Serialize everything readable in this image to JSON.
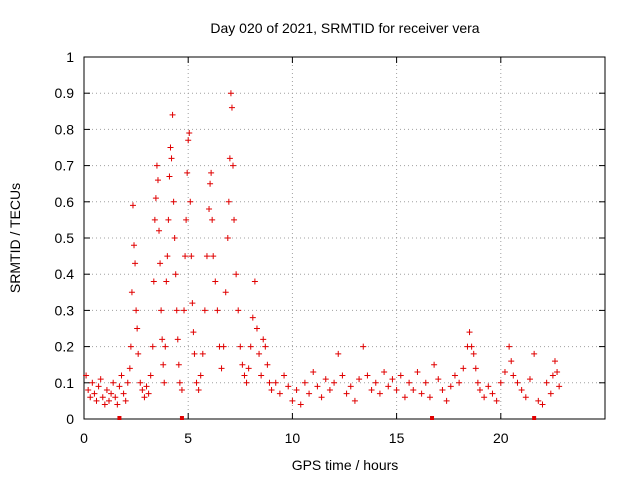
{
  "chart_data": {
    "type": "scatter",
    "title": "Day 020 of 2021, SRMTID for receiver vera",
    "xlabel": "GPS time / hours",
    "ylabel": "SRMTID / TECUs",
    "xlim": [
      0,
      25
    ],
    "ylim": [
      0,
      1
    ],
    "xticks": [
      0,
      5,
      10,
      15,
      20
    ],
    "xtick_labels": [
      "0",
      "5",
      "10",
      "15",
      "20"
    ],
    "yticks": [
      0,
      0.1,
      0.2,
      0.3,
      0.4,
      0.5,
      0.6,
      0.7,
      0.8,
      0.9,
      1
    ],
    "ytick_labels": [
      "0",
      "0.1",
      "0.2",
      "0.3",
      "0.4",
      "0.5",
      "0.6",
      "0.7",
      "0.8",
      "0.9",
      "1"
    ],
    "grid": true,
    "marker": "+",
    "marker_color": "#e00000",
    "series": [
      {
        "name": "SRMTID",
        "points": [
          [
            0.1,
            0.12
          ],
          [
            0.2,
            0.08
          ],
          [
            0.3,
            0.06
          ],
          [
            0.4,
            0.1
          ],
          [
            0.5,
            0.07
          ],
          [
            0.6,
            0.05
          ],
          [
            0.7,
            0.09
          ],
          [
            0.8,
            0.11
          ],
          [
            0.9,
            0.06
          ],
          [
            1.0,
            0.04
          ],
          [
            1.1,
            0.08
          ],
          [
            1.2,
            0.05
          ],
          [
            1.3,
            0.07
          ],
          [
            1.4,
            0.1
          ],
          [
            1.5,
            0.06
          ],
          [
            1.6,
            0.04
          ],
          [
            1.7,
            0.09
          ],
          [
            1.8,
            0.12
          ],
          [
            1.9,
            0.07
          ],
          [
            2.0,
            0.05
          ],
          [
            2.1,
            0.1
          ],
          [
            2.2,
            0.14
          ],
          [
            2.25,
            0.2
          ],
          [
            2.3,
            0.35
          ],
          [
            2.35,
            0.59
          ],
          [
            2.4,
            0.48
          ],
          [
            2.45,
            0.43
          ],
          [
            2.5,
            0.3
          ],
          [
            2.55,
            0.25
          ],
          [
            2.6,
            0.18
          ],
          [
            2.7,
            0.1
          ],
          [
            2.8,
            0.08
          ],
          [
            2.9,
            0.06
          ],
          [
            3.0,
            0.09
          ],
          [
            3.1,
            0.07
          ],
          [
            3.2,
            0.12
          ],
          [
            3.3,
            0.2
          ],
          [
            3.35,
            0.38
          ],
          [
            3.4,
            0.55
          ],
          [
            3.45,
            0.61
          ],
          [
            3.5,
            0.7
          ],
          [
            3.55,
            0.66
          ],
          [
            3.6,
            0.52
          ],
          [
            3.65,
            0.43
          ],
          [
            3.7,
            0.3
          ],
          [
            3.75,
            0.22
          ],
          [
            3.8,
            0.15
          ],
          [
            3.85,
            0.1
          ],
          [
            3.9,
            0.2
          ],
          [
            3.95,
            0.38
          ],
          [
            4.0,
            0.45
          ],
          [
            4.05,
            0.55
          ],
          [
            4.1,
            0.67
          ],
          [
            4.15,
            0.75
          ],
          [
            4.2,
            0.72
          ],
          [
            4.25,
            0.84
          ],
          [
            4.3,
            0.6
          ],
          [
            4.35,
            0.5
          ],
          [
            4.4,
            0.4
          ],
          [
            4.45,
            0.3
          ],
          [
            4.5,
            0.22
          ],
          [
            4.55,
            0.15
          ],
          [
            4.6,
            0.1
          ],
          [
            4.7,
            0.08
          ],
          [
            4.8,
            0.3
          ],
          [
            4.85,
            0.45
          ],
          [
            4.9,
            0.55
          ],
          [
            4.95,
            0.68
          ],
          [
            5.0,
            0.77
          ],
          [
            5.05,
            0.79
          ],
          [
            5.1,
            0.6
          ],
          [
            5.15,
            0.45
          ],
          [
            5.2,
            0.32
          ],
          [
            5.25,
            0.24
          ],
          [
            5.3,
            0.18
          ],
          [
            5.4,
            0.1
          ],
          [
            5.5,
            0.08
          ],
          [
            5.6,
            0.12
          ],
          [
            5.7,
            0.18
          ],
          [
            5.8,
            0.3
          ],
          [
            5.9,
            0.45
          ],
          [
            6.0,
            0.58
          ],
          [
            6.05,
            0.65
          ],
          [
            6.1,
            0.68
          ],
          [
            6.15,
            0.55
          ],
          [
            6.2,
            0.45
          ],
          [
            6.3,
            0.38
          ],
          [
            6.4,
            0.3
          ],
          [
            6.5,
            0.2
          ],
          [
            6.6,
            0.14
          ],
          [
            6.7,
            0.2
          ],
          [
            6.8,
            0.35
          ],
          [
            6.9,
            0.5
          ],
          [
            6.95,
            0.6
          ],
          [
            7.0,
            0.72
          ],
          [
            7.05,
            0.9
          ],
          [
            7.1,
            0.86
          ],
          [
            7.15,
            0.7
          ],
          [
            7.2,
            0.55
          ],
          [
            7.3,
            0.4
          ],
          [
            7.4,
            0.3
          ],
          [
            7.5,
            0.2
          ],
          [
            7.6,
            0.15
          ],
          [
            7.7,
            0.12
          ],
          [
            7.8,
            0.1
          ],
          [
            7.9,
            0.14
          ],
          [
            8.0,
            0.2
          ],
          [
            8.1,
            0.28
          ],
          [
            8.2,
            0.38
          ],
          [
            8.3,
            0.25
          ],
          [
            8.4,
            0.18
          ],
          [
            8.5,
            0.12
          ],
          [
            8.6,
            0.22
          ],
          [
            8.7,
            0.2
          ],
          [
            8.8,
            0.15
          ],
          [
            8.9,
            0.1
          ],
          [
            9.0,
            0.08
          ],
          [
            9.2,
            0.1
          ],
          [
            9.4,
            0.07
          ],
          [
            9.6,
            0.12
          ],
          [
            9.8,
            0.09
          ],
          [
            10.0,
            0.05
          ],
          [
            10.2,
            0.08
          ],
          [
            10.4,
            0.04
          ],
          [
            10.6,
            0.1
          ],
          [
            10.8,
            0.07
          ],
          [
            11.0,
            0.13
          ],
          [
            11.2,
            0.09
          ],
          [
            11.4,
            0.06
          ],
          [
            11.6,
            0.11
          ],
          [
            11.8,
            0.08
          ],
          [
            12.0,
            0.1
          ],
          [
            12.2,
            0.18
          ],
          [
            12.4,
            0.12
          ],
          [
            12.6,
            0.07
          ],
          [
            12.8,
            0.09
          ],
          [
            13.0,
            0.05
          ],
          [
            13.2,
            0.11
          ],
          [
            13.4,
            0.2
          ],
          [
            13.6,
            0.12
          ],
          [
            13.8,
            0.08
          ],
          [
            14.0,
            0.1
          ],
          [
            14.2,
            0.07
          ],
          [
            14.4,
            0.13
          ],
          [
            14.6,
            0.09
          ],
          [
            14.8,
            0.11
          ],
          [
            15.0,
            0.08
          ],
          [
            15.2,
            0.12
          ],
          [
            15.4,
            0.06
          ],
          [
            15.6,
            0.1
          ],
          [
            15.8,
            0.08
          ],
          [
            16.0,
            0.13
          ],
          [
            16.2,
            0.07
          ],
          [
            16.4,
            0.1
          ],
          [
            16.6,
            0.06
          ],
          [
            16.8,
            0.15
          ],
          [
            17.0,
            0.11
          ],
          [
            17.2,
            0.08
          ],
          [
            17.4,
            0.05
          ],
          [
            17.6,
            0.09
          ],
          [
            17.8,
            0.12
          ],
          [
            18.0,
            0.1
          ],
          [
            18.2,
            0.14
          ],
          [
            18.4,
            0.2
          ],
          [
            18.5,
            0.24
          ],
          [
            18.6,
            0.2
          ],
          [
            18.7,
            0.18
          ],
          [
            18.8,
            0.14
          ],
          [
            18.9,
            0.1
          ],
          [
            19.0,
            0.08
          ],
          [
            19.2,
            0.06
          ],
          [
            19.4,
            0.09
          ],
          [
            19.6,
            0.07
          ],
          [
            19.8,
            0.05
          ],
          [
            20.0,
            0.1
          ],
          [
            20.2,
            0.13
          ],
          [
            20.4,
            0.2
          ],
          [
            20.5,
            0.16
          ],
          [
            20.6,
            0.12
          ],
          [
            20.8,
            0.1
          ],
          [
            21.0,
            0.08
          ],
          [
            21.2,
            0.06
          ],
          [
            21.4,
            0.11
          ],
          [
            21.6,
            0.18
          ],
          [
            21.8,
            0.05
          ],
          [
            22.0,
            0.04
          ],
          [
            22.2,
            0.1
          ],
          [
            22.4,
            0.07
          ],
          [
            22.5,
            0.12
          ],
          [
            22.6,
            0.16
          ],
          [
            22.7,
            0.13
          ],
          [
            22.8,
            0.09
          ]
        ]
      }
    ],
    "gap_markers": [
      1.7,
      4.7,
      16.7,
      21.6
    ]
  }
}
